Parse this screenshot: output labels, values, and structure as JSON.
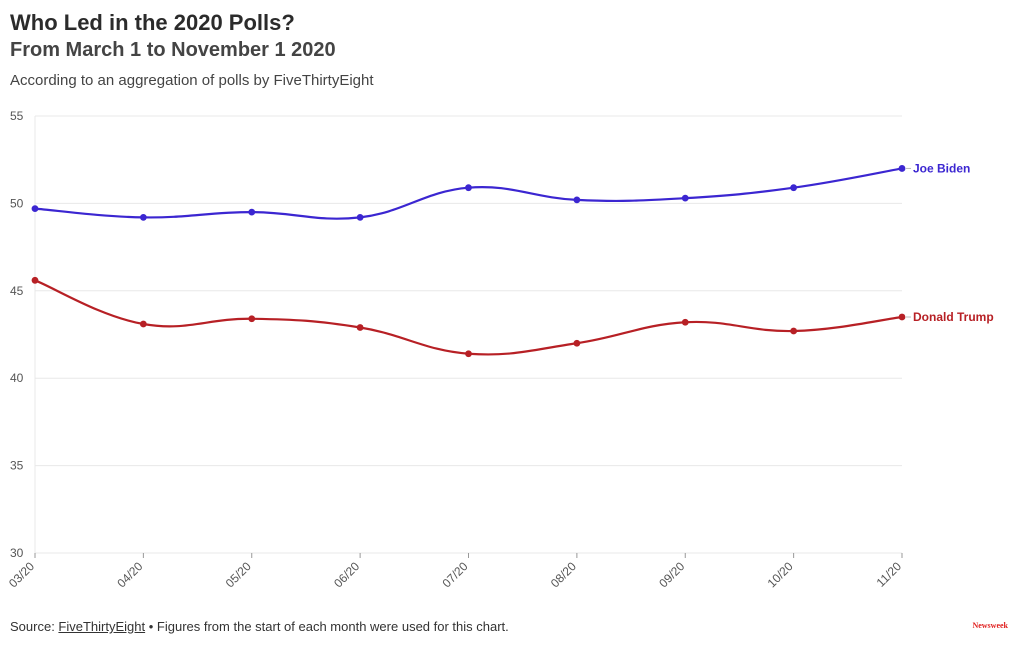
{
  "header": {
    "title": "Who Led in the 2020 Polls?",
    "subtitle": "From March 1 to November 1 2020",
    "description": "According to an aggregation of polls by FiveThirtyEight"
  },
  "footer": {
    "source_prefix": "Source: ",
    "source_link": "FiveThirtyEight",
    "source_suffix": " • Figures from the start of each month were used for this chart.",
    "logo": "Newsweek"
  },
  "colors": {
    "biden": "#3b26d1",
    "trump": "#b72025",
    "grid": "#e8e8e8",
    "logo": "#e0201f"
  },
  "chart_data": {
    "type": "line",
    "title": "Who Led in the 2020 Polls?",
    "xlabel": "",
    "ylabel": "",
    "categories": [
      "03/20",
      "04/20",
      "05/20",
      "06/20",
      "07/20",
      "08/20",
      "09/20",
      "10/20",
      "11/20"
    ],
    "ylim": [
      30,
      55
    ],
    "yticks": [
      30,
      35,
      40,
      45,
      50,
      55
    ],
    "grid": true,
    "legend": "end-of-line labels",
    "series": [
      {
        "name": "Joe Biden",
        "color": "#3b26d1",
        "values": [
          49.7,
          49.2,
          49.5,
          49.2,
          50.9,
          50.2,
          50.3,
          50.9,
          52.0
        ]
      },
      {
        "name": "Donald Trump",
        "color": "#b72025",
        "values": [
          45.6,
          43.1,
          43.4,
          42.9,
          41.4,
          42.0,
          43.2,
          42.7,
          43.5
        ]
      }
    ]
  }
}
